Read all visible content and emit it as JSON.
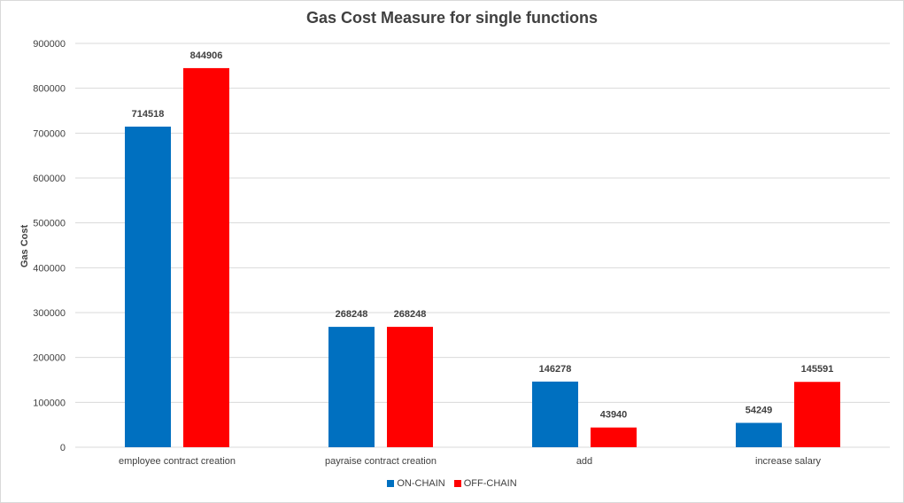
{
  "chart_data": {
    "type": "bar",
    "title": "Gas Cost Measure for single functions",
    "xlabel": "",
    "ylabel": "Gas Cost",
    "ylim": [
      0,
      900000
    ],
    "yticks": [
      0,
      100000,
      200000,
      300000,
      400000,
      500000,
      600000,
      700000,
      800000,
      900000
    ],
    "grid": true,
    "legend_position": "bottom",
    "categories": [
      "employee contract creation",
      "payraise contract creation",
      "add",
      "increase salary"
    ],
    "series": [
      {
        "name": "ON-CHAIN",
        "color": "#0070c0",
        "values": [
          714518,
          268248,
          146278,
          54249
        ]
      },
      {
        "name": "OFF-CHAIN",
        "color": "#ff0000",
        "values": [
          844906,
          268248,
          43940,
          145591
        ]
      }
    ]
  }
}
